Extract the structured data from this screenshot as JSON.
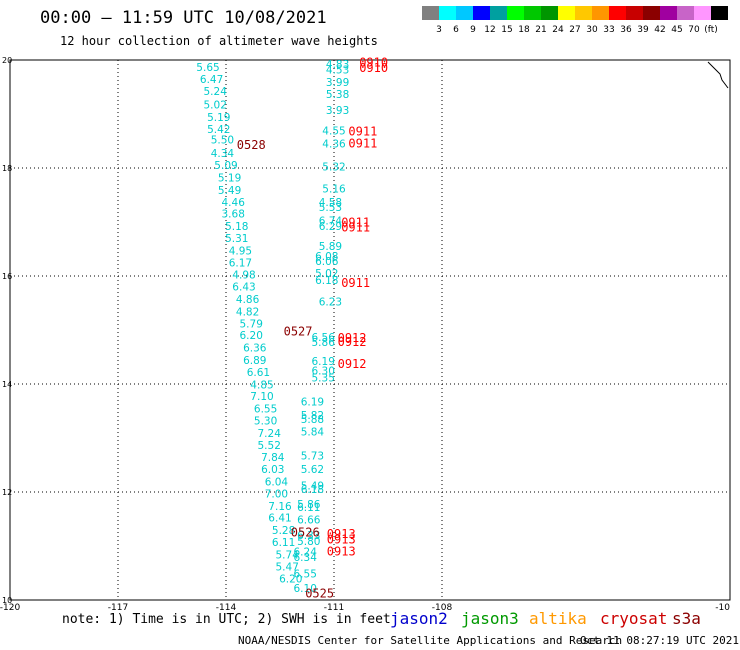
{
  "header": {
    "title": "00:00 — 11:59 UTC 10/08/2021",
    "subtitle": "12 hour collection of altimeter wave heights"
  },
  "color_scale": {
    "colors": [
      "#808080",
      "#00ffff",
      "#00c8ff",
      "#0000ff",
      "#00a0a0",
      "#00ff00",
      "#00c800",
      "#009600",
      "#ffff00",
      "#ffc800",
      "#ff9600",
      "#ff0000",
      "#c80000",
      "#8b0000",
      "#a000a0",
      "#c864c8",
      "#ff96ff",
      "#000000"
    ],
    "labels": [
      "3",
      "6",
      "9",
      "12",
      "15",
      "18",
      "21",
      "24",
      "27",
      "30",
      "33",
      "36",
      "39",
      "42",
      "45",
      "70",
      "(ft)"
    ]
  },
  "chart_data": {
    "type": "scatter",
    "xlim": [
      -120,
      -100
    ],
    "ylim": [
      10,
      20
    ],
    "x_ticks": [
      "-120",
      "-117",
      "-114",
      "-111",
      "-108",
      "-10"
    ],
    "y_ticks": [
      "20",
      "18",
      "16",
      "14",
      "12",
      "10"
    ],
    "grid": true,
    "track_points": [
      {
        "lon": -114.5,
        "lat": 19.8,
        "swh": "5.65"
      },
      {
        "lon": -114.4,
        "lat": 19.57,
        "swh": "6.47"
      },
      {
        "lon": -114.3,
        "lat": 19.35,
        "swh": "5.24"
      },
      {
        "lon": -114.3,
        "lat": 19.1,
        "swh": "5.02"
      },
      {
        "lon": -114.2,
        "lat": 18.87,
        "swh": "5.19"
      },
      {
        "lon": -114.2,
        "lat": 18.65,
        "swh": "5.42"
      },
      {
        "lon": -114.1,
        "lat": 18.45,
        "swh": "5.50"
      },
      {
        "lon": -114.1,
        "lat": 18.2,
        "swh": "4.34"
      },
      {
        "lon": -114.0,
        "lat": 17.98,
        "swh": "5.09"
      },
      {
        "lon": -113.9,
        "lat": 17.75,
        "swh": "5.19"
      },
      {
        "lon": -113.9,
        "lat": 17.52,
        "swh": "5.49"
      },
      {
        "lon": -113.8,
        "lat": 17.3,
        "swh": "4.46"
      },
      {
        "lon": -113.8,
        "lat": 17.08,
        "swh": "3.68"
      },
      {
        "lon": -113.7,
        "lat": 16.85,
        "swh": "5.18"
      },
      {
        "lon": -113.7,
        "lat": 16.63,
        "swh": "5.31"
      },
      {
        "lon": -113.6,
        "lat": 16.4,
        "swh": "4.95"
      },
      {
        "lon": -113.6,
        "lat": 16.18,
        "swh": "6.17"
      },
      {
        "lon": -113.5,
        "lat": 15.95,
        "swh": "4.98"
      },
      {
        "lon": -113.5,
        "lat": 15.73,
        "swh": "6.43"
      },
      {
        "lon": -113.4,
        "lat": 15.5,
        "swh": "4.86"
      },
      {
        "lon": -113.4,
        "lat": 15.27,
        "swh": "4.82"
      },
      {
        "lon": -113.3,
        "lat": 15.05,
        "swh": "5.79"
      },
      {
        "lon": -113.3,
        "lat": 14.83,
        "swh": "6.20"
      },
      {
        "lon": -113.2,
        "lat": 14.6,
        "swh": "6.36"
      },
      {
        "lon": -113.2,
        "lat": 14.37,
        "swh": "6.89"
      },
      {
        "lon": -113.1,
        "lat": 14.15,
        "swh": "6.61"
      },
      {
        "lon": -113.0,
        "lat": 13.92,
        "swh": "4.85"
      },
      {
        "lon": -113.0,
        "lat": 13.7,
        "swh": "7.10"
      },
      {
        "lon": -112.9,
        "lat": 13.47,
        "swh": "6.55"
      },
      {
        "lon": -112.9,
        "lat": 13.25,
        "swh": "5.30"
      },
      {
        "lon": -112.8,
        "lat": 13.02,
        "swh": "7.24"
      },
      {
        "lon": -112.8,
        "lat": 12.8,
        "swh": "5.52"
      },
      {
        "lon": -112.7,
        "lat": 12.57,
        "swh": "7.84"
      },
      {
        "lon": -112.7,
        "lat": 12.35,
        "swh": "6.03"
      },
      {
        "lon": -112.6,
        "lat": 12.12,
        "swh": "6.04"
      },
      {
        "lon": -112.6,
        "lat": 11.9,
        "swh": "7.00"
      },
      {
        "lon": -112.5,
        "lat": 11.67,
        "swh": "7.16"
      },
      {
        "lon": -112.5,
        "lat": 11.45,
        "swh": "6.41"
      },
      {
        "lon": -112.4,
        "lat": 11.22,
        "swh": "5.28"
      },
      {
        "lon": -112.4,
        "lat": 11.0,
        "swh": "6.11"
      },
      {
        "lon": -112.3,
        "lat": 10.77,
        "swh": "5.74"
      },
      {
        "lon": -112.3,
        "lat": 10.55,
        "swh": "5.47"
      },
      {
        "lon": -112.2,
        "lat": 10.32,
        "swh": "6.20"
      },
      {
        "lon": -110.9,
        "lat": 19.85,
        "swh": "4.83"
      },
      {
        "lon": -110.9,
        "lat": 19.75,
        "swh": "4.53"
      },
      {
        "lon": -110.9,
        "lat": 19.52,
        "swh": "3.99"
      },
      {
        "lon": -110.9,
        "lat": 19.3,
        "swh": "5.38"
      },
      {
        "lon": -110.9,
        "lat": 19.0,
        "swh": "3.93"
      },
      {
        "lon": -111.0,
        "lat": 18.62,
        "swh": "4.55"
      },
      {
        "lon": -111.0,
        "lat": 18.38,
        "swh": "4.36"
      },
      {
        "lon": -111.0,
        "lat": 17.95,
        "swh": "5.32"
      },
      {
        "lon": -111.0,
        "lat": 17.55,
        "swh": "5.16"
      },
      {
        "lon": -111.1,
        "lat": 17.3,
        "swh": "4.58"
      },
      {
        "lon": -111.1,
        "lat": 17.2,
        "swh": "5.53"
      },
      {
        "lon": -111.1,
        "lat": 16.95,
        "swh": "6.74"
      },
      {
        "lon": -111.1,
        "lat": 16.85,
        "swh": "6.29"
      },
      {
        "lon": -111.1,
        "lat": 16.48,
        "swh": "5.89"
      },
      {
        "lon": -111.2,
        "lat": 16.3,
        "swh": "6.08"
      },
      {
        "lon": -111.2,
        "lat": 16.2,
        "swh": "6.06"
      },
      {
        "lon": -111.2,
        "lat": 15.98,
        "swh": "5.02"
      },
      {
        "lon": -111.2,
        "lat": 15.85,
        "swh": "6.18"
      },
      {
        "lon": -111.1,
        "lat": 15.45,
        "swh": "6.23"
      },
      {
        "lon": -111.3,
        "lat": 14.8,
        "swh": "6.56"
      },
      {
        "lon": -111.3,
        "lat": 14.7,
        "swh": "5.86"
      },
      {
        "lon": -111.3,
        "lat": 14.35,
        "swh": "6.19"
      },
      {
        "lon": -111.3,
        "lat": 14.18,
        "swh": "6.30"
      },
      {
        "lon": -111.3,
        "lat": 14.05,
        "swh": "5.35"
      },
      {
        "lon": -111.6,
        "lat": 13.6,
        "swh": "6.19"
      },
      {
        "lon": -111.6,
        "lat": 13.35,
        "swh": "5.82"
      },
      {
        "lon": -111.6,
        "lat": 13.28,
        "swh": "5.88"
      },
      {
        "lon": -111.6,
        "lat": 13.05,
        "swh": "5.84"
      },
      {
        "lon": -111.6,
        "lat": 12.6,
        "swh": "5.73"
      },
      {
        "lon": -111.6,
        "lat": 12.35,
        "swh": "5.62"
      },
      {
        "lon": -111.6,
        "lat": 12.05,
        "swh": "5.49"
      },
      {
        "lon": -111.6,
        "lat": 11.98,
        "swh": "6.18"
      },
      {
        "lon": -111.7,
        "lat": 11.7,
        "swh": "5.86"
      },
      {
        "lon": -111.7,
        "lat": 11.65,
        "swh": "6.11"
      },
      {
        "lon": -111.7,
        "lat": 11.42,
        "swh": "6.66"
      },
      {
        "lon": -111.7,
        "lat": 11.13,
        "swh": "6.33"
      },
      {
        "lon": -111.7,
        "lat": 11.02,
        "swh": "5.80"
      },
      {
        "lon": -111.8,
        "lat": 10.82,
        "swh": "6.24"
      },
      {
        "lon": -111.8,
        "lat": 10.72,
        "swh": "6.34"
      },
      {
        "lon": -111.8,
        "lat": 10.42,
        "swh": "6.55"
      },
      {
        "lon": -111.8,
        "lat": 10.15,
        "swh": "6.10"
      }
    ],
    "time_labels": [
      {
        "lon": -113.7,
        "lat": 18.35,
        "text": "0528",
        "color": "#8b0000"
      },
      {
        "lon": -112.4,
        "lat": 14.9,
        "text": "0527",
        "color": "#8b0000"
      },
      {
        "lon": -112.2,
        "lat": 11.18,
        "text": "0526",
        "color": "#8b0000"
      },
      {
        "lon": -111.8,
        "lat": 10.05,
        "text": "0525",
        "color": "#8b0000"
      },
      {
        "lon": -110.3,
        "lat": 19.88,
        "text": "0910",
        "color": "#ff0000"
      },
      {
        "lon": -110.3,
        "lat": 19.78,
        "text": "0910",
        "color": "#ff0000"
      },
      {
        "lon": -110.6,
        "lat": 18.6,
        "text": "0911",
        "color": "#ff0000"
      },
      {
        "lon": -110.6,
        "lat": 18.38,
        "text": "0911",
        "color": "#ff0000"
      },
      {
        "lon": -110.8,
        "lat": 16.92,
        "text": "0911",
        "color": "#ff0000"
      },
      {
        "lon": -110.8,
        "lat": 16.82,
        "text": "0911",
        "color": "#ff0000"
      },
      {
        "lon": -110.8,
        "lat": 15.8,
        "text": "0911",
        "color": "#ff0000"
      },
      {
        "lon": -110.9,
        "lat": 14.78,
        "text": "0912",
        "color": "#ff0000"
      },
      {
        "lon": -110.9,
        "lat": 14.7,
        "text": "0912",
        "color": "#ff0000"
      },
      {
        "lon": -110.9,
        "lat": 14.3,
        "text": "0912",
        "color": "#ff0000"
      },
      {
        "lon": -111.2,
        "lat": 11.15,
        "text": "0913",
        "color": "#ff0000"
      },
      {
        "lon": -111.2,
        "lat": 11.05,
        "text": "0913",
        "color": "#ff0000"
      },
      {
        "lon": -111.2,
        "lat": 10.82,
        "text": "0913",
        "color": "#ff0000"
      }
    ]
  },
  "notes": {
    "note": "note: 1) Time is in UTC; 2) SWH is in feet",
    "footer_left": "NOAA/NESDIS Center for Satellite Applications and Research",
    "footer_right": "Oct 11 08:27:19 UTC 2021"
  },
  "satellites": [
    {
      "name": "jason2",
      "color": "#0000cc"
    },
    {
      "name": "jason3",
      "color": "#009900"
    },
    {
      "name": "altika",
      "color": "#ff9900"
    },
    {
      "name": "cryosat",
      "color": "#cc0000"
    },
    {
      "name": "s3a",
      "color": "#8b0000"
    }
  ]
}
